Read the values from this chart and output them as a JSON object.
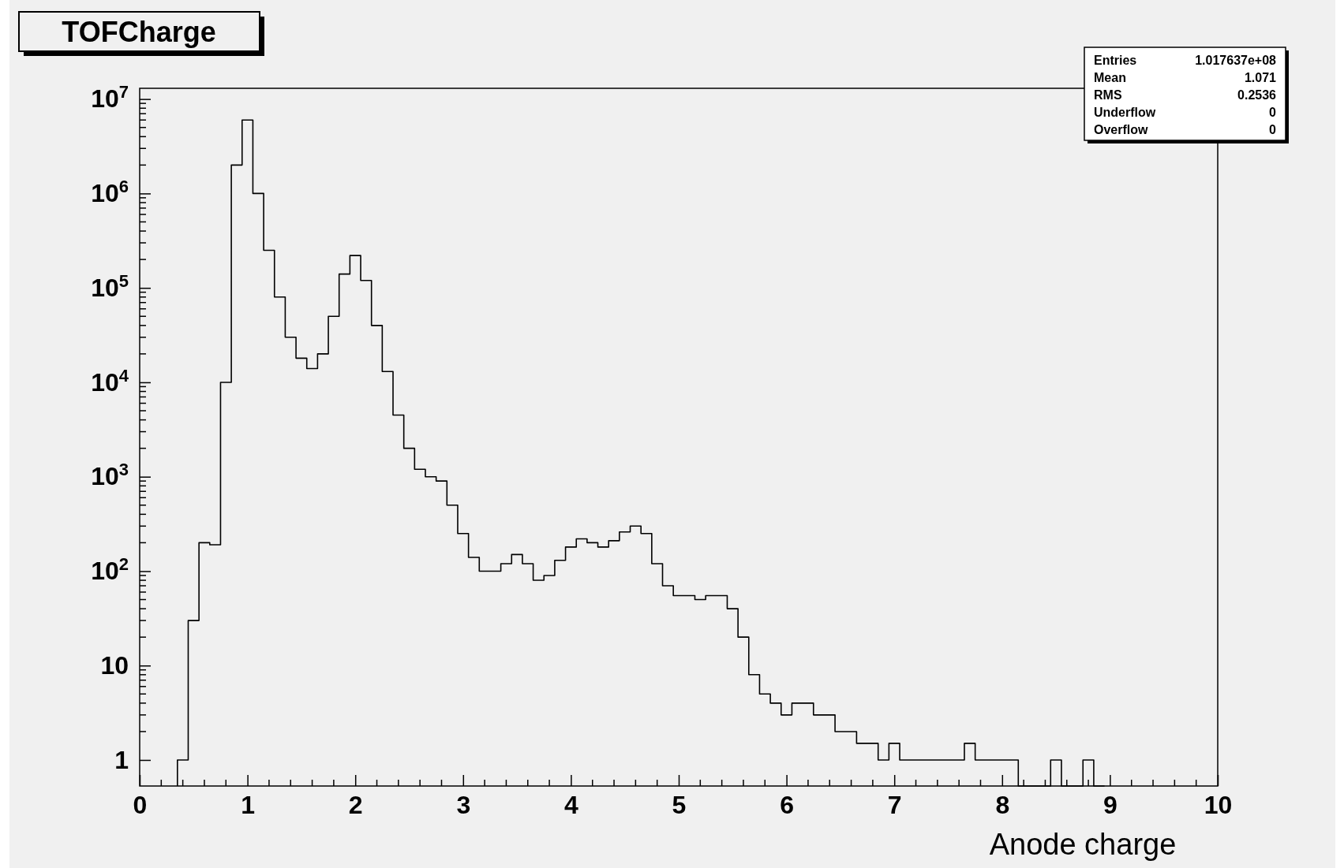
{
  "chart_data": {
    "type": "histogram",
    "title": "TOFCharge",
    "xlabel": "Anode charge",
    "log": "y",
    "color": "#000000",
    "bins": [
      0.35,
      0.45,
      0.55,
      0.65,
      0.75,
      0.85,
      0.95,
      1.05,
      1.15,
      1.25,
      1.35,
      1.45,
      1.55,
      1.65,
      1.75,
      1.85,
      1.95,
      2.05,
      2.15,
      2.25,
      2.35,
      2.45,
      2.55,
      2.65,
      2.75,
      2.85,
      2.95,
      3.05,
      3.15,
      3.25,
      3.35,
      3.45,
      3.55,
      3.65,
      3.75,
      3.85,
      3.95,
      4.05,
      4.15,
      4.25,
      4.35,
      4.45,
      4.55,
      4.65,
      4.75,
      4.85,
      4.95,
      5.05,
      5.15,
      5.25,
      5.35,
      5.45,
      5.55,
      5.65,
      5.75,
      5.85,
      5.95,
      6.05,
      6.15,
      6.25,
      6.35,
      6.45,
      6.55,
      6.65,
      6.75,
      6.85,
      6.95,
      7.05,
      7.15,
      7.25,
      7.35,
      7.45,
      7.55,
      7.65,
      7.75,
      7.85,
      7.95,
      8.05,
      8.15,
      8.25,
      8.35,
      8.45,
      8.55,
      8.65,
      8.75,
      8.85,
      8.95
    ],
    "values": [
      1,
      30,
      200,
      190,
      10000,
      2000000,
      6000000,
      1000000,
      250000,
      80000,
      30000,
      18000,
      14000,
      20000,
      50000,
      140000,
      220000,
      120000,
      40000,
      13000,
      4500,
      2000,
      1200,
      1000,
      900,
      500,
      250,
      140,
      100,
      100,
      120,
      150,
      120,
      80,
      90,
      130,
      180,
      220,
      200,
      180,
      210,
      260,
      300,
      250,
      120,
      70,
      55,
      55,
      50,
      55,
      55,
      40,
      20,
      8,
      5,
      4,
      3,
      4,
      4,
      3,
      3,
      2,
      2,
      1.5,
      1.5,
      1,
      1.5,
      1,
      1,
      1,
      1,
      1,
      1,
      1.5,
      1,
      1,
      1,
      1,
      null,
      null,
      null,
      1,
      null,
      null,
      1,
      null
    ],
    "xlim": [
      0,
      10
    ],
    "ylim": [
      0.53,
      13000000
    ],
    "xticks": [
      0,
      1,
      2,
      3,
      4,
      5,
      6,
      7,
      8,
      9,
      10
    ],
    "yticks": [
      1,
      10,
      {
        "value": 100,
        "label": "10$^{2}$"
      },
      {
        "value": 1000,
        "label": "10$^{3}$"
      },
      {
        "value": 10000,
        "label": "10$^{4}$"
      },
      {
        "value": 100000,
        "label": "10$^{5}$"
      },
      {
        "value": 1000000,
        "label": "10$^{6}$"
      },
      {
        "value": 10000000,
        "label": "10$^{7}$"
      }
    ],
    "annotations": [
      "Entries",
      "1.017637e+08",
      "Mean",
      "1.071",
      "RMS",
      "0.2536",
      "Underflow",
      "0",
      "Overflow",
      "0"
    ]
  }
}
